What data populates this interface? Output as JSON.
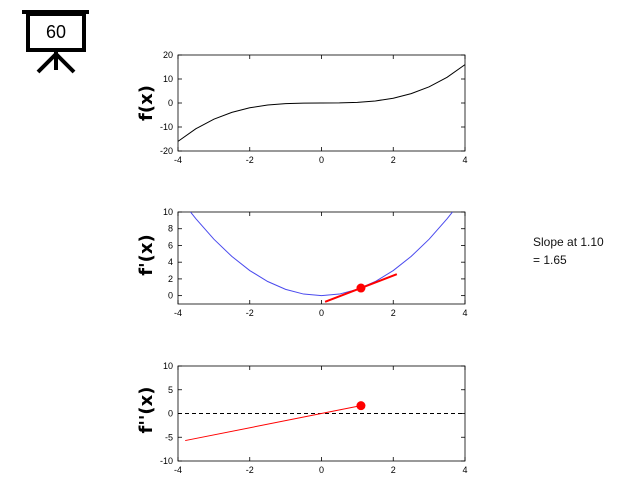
{
  "icon": {
    "name": "presentation-screen-icon",
    "label": "60"
  },
  "annotation": {
    "line1": "Slope at 1.10",
    "line2": "= 1.65"
  },
  "colors": {
    "f": "#000000",
    "fprime": "#4a4aee",
    "tangent": "#ff0000",
    "zero_line": "#000000"
  },
  "chart_data": [
    {
      "type": "line",
      "title": "",
      "ylabel": "f(x)",
      "xlabel": "",
      "xlim": [
        -4,
        4
      ],
      "ylim": [
        -20,
        20
      ],
      "xticks": [
        "-4",
        "-2",
        "0",
        "2",
        "4"
      ],
      "yticks": [
        "20",
        "10",
        "0",
        "-10",
        "-20"
      ],
      "series": [
        {
          "x": [
            -4,
            -3.5,
            -3,
            -2.5,
            -2,
            -1.5,
            -1,
            -0.5,
            0,
            0.5,
            1,
            1.5,
            2,
            2.5,
            3,
            3.5,
            4
          ],
          "y": [
            -16,
            -10.72,
            -6.75,
            -3.91,
            -2,
            -0.84,
            -0.25,
            -0.03,
            0,
            0.03,
            0.25,
            0.84,
            2,
            3.91,
            6.75,
            10.72,
            16
          ]
        }
      ]
    },
    {
      "type": "line",
      "title": "",
      "ylabel": "f'(x)",
      "xlabel": "",
      "xlim": [
        -4,
        4
      ],
      "ylim": [
        -1,
        10
      ],
      "xticks": [
        "-4",
        "-2",
        "0",
        "2",
        "4"
      ],
      "yticks": [
        "10",
        "8",
        "6",
        "4",
        "2",
        "0"
      ],
      "series": [
        {
          "x": [
            -3.65,
            -3.5,
            -3,
            -2.5,
            -2,
            -1.5,
            -1,
            -0.5,
            0,
            0.5,
            1,
            1.5,
            2,
            2.5,
            3,
            3.5,
            3.65
          ],
          "y": [
            9.99,
            9.19,
            6.75,
            4.69,
            3,
            1.69,
            0.75,
            0.19,
            0,
            0.19,
            0.75,
            1.69,
            3,
            4.69,
            6.75,
            9.19,
            9.99
          ]
        }
      ],
      "tangent": {
        "x": [
          0.1,
          2.1
        ],
        "y": [
          -0.74,
          2.56
        ]
      },
      "point": {
        "x": 1.1,
        "y": 0.91
      }
    },
    {
      "type": "line",
      "title": "",
      "ylabel": "f''(x)",
      "xlabel": "",
      "xlim": [
        -4,
        4
      ],
      "ylim": [
        -10,
        10
      ],
      "xticks": [
        "-4",
        "-2",
        "0",
        "2",
        "4"
      ],
      "yticks": [
        "10",
        "5",
        "0",
        "-5",
        "-10"
      ],
      "series": [
        {
          "x": [
            -3.8,
            1.1
          ],
          "y": [
            -5.7,
            1.65
          ]
        }
      ],
      "reference_line": {
        "y": 0,
        "style": "dashed"
      },
      "point": {
        "x": 1.1,
        "y": 1.65
      }
    }
  ]
}
